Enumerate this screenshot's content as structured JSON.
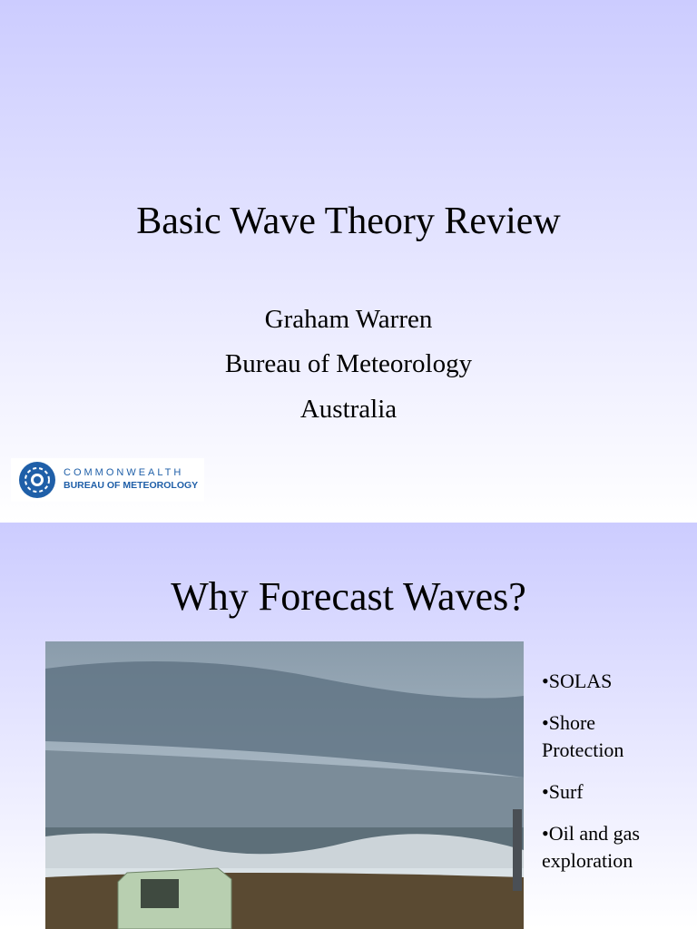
{
  "slides": [
    {
      "title": "Basic Wave Theory Review",
      "lines": [
        "Graham Warren",
        "Bureau of Meteorology",
        "Australia"
      ],
      "logo": {
        "top": "COMMONWEALTH",
        "bottom": "BUREAU OF METEOROLOGY"
      }
    },
    {
      "title": "Why Forecast Waves?",
      "bullets": [
        "•SOLAS",
        "•Shore Protection",
        "•Surf",
        "•Oil and gas exploration"
      ]
    }
  ]
}
